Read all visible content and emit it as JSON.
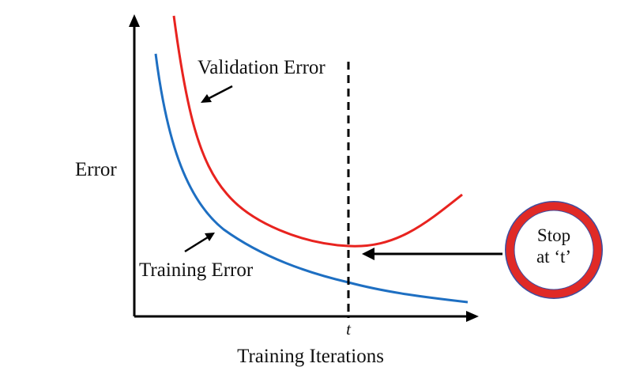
{
  "diagram": {
    "y_axis_label": "Error",
    "x_axis_label": "Training Iterations",
    "t_marker": "t",
    "stop_badge": {
      "line1": "Stop",
      "line2": "at ‘t’"
    },
    "curves": [
      {
        "name": "Validation Error",
        "color": "#e8231f"
      },
      {
        "name": "Training Error",
        "color": "#1e6fc2"
      }
    ],
    "colors": {
      "axis": "#000000",
      "stop_ring": "#e02a26",
      "stop_ring_outline": "#3d4ea0",
      "stop_ring_fill": "#ffffff"
    }
  }
}
